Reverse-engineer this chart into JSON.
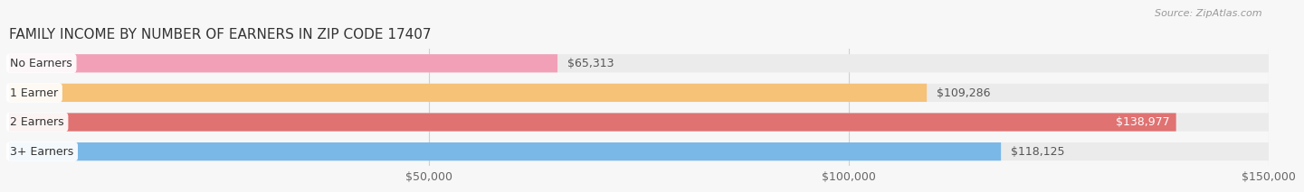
{
  "title": "FAMILY INCOME BY NUMBER OF EARNERS IN ZIP CODE 17407",
  "source": "Source: ZipAtlas.com",
  "categories": [
    "No Earners",
    "1 Earner",
    "2 Earners",
    "3+ Earners"
  ],
  "values": [
    65313,
    109286,
    138977,
    118125
  ],
  "bar_colors": [
    "#f2a0b8",
    "#f5c278",
    "#e07272",
    "#7ab8e8"
  ],
  "bar_bg_color": "#ebebeb",
  "value_label_colors": [
    "#555555",
    "#555555",
    "#ffffff",
    "#7ab8e8"
  ],
  "xlim_min": 0,
  "xlim_max": 150000,
  "xticks": [
    50000,
    100000,
    150000
  ],
  "xtick_labels": [
    "$50,000",
    "$100,000",
    "$150,000"
  ],
  "background_color": "#f7f7f7",
  "bar_height": 0.62,
  "title_fontsize": 11,
  "source_fontsize": 8,
  "label_fontsize": 9,
  "value_fontsize": 9,
  "tick_fontsize": 9
}
